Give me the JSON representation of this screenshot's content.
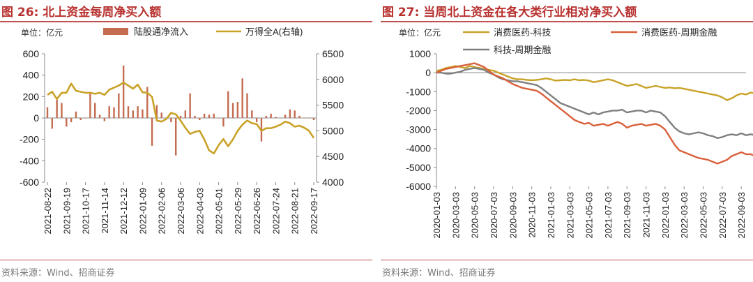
{
  "left": {
    "figure_title": "图 26:  北上资金每周净买入额",
    "source": "资料来源：Wind、招商证券",
    "unit": "单位：亿元",
    "chart_data": {
      "type": "bar+line",
      "title": "北上资金每周净买入额",
      "unit_label": "单位：亿元",
      "legend": [
        "陆股通净流入",
        "万得全A(右轴)"
      ],
      "y_left": {
        "ylim": [
          -600,
          600
        ],
        "ticks": [
          "600",
          "400",
          "200",
          "0",
          "-200",
          "-400",
          "-600"
        ],
        "tick_values": [
          600,
          400,
          200,
          0,
          -200,
          -400,
          -600
        ]
      },
      "y_right": {
        "ylim": [
          4000,
          6500
        ],
        "ticks": [
          "6500",
          "6000",
          "5500",
          "5000",
          "4500",
          "4000"
        ],
        "tick_values": [
          6500,
          6000,
          5500,
          5000,
          4500,
          4000
        ]
      },
      "x_tick_labels": [
        "2021-08-22",
        "2021-09-19",
        "2021-10-17",
        "2021-11-14",
        "2021-12-12",
        "2022-01-09",
        "2022-02-06",
        "2022-03-06",
        "2022-04-03",
        "2022-05-01",
        "2022-05-29",
        "2022-06-26",
        "2022-07-24",
        "2022-08-21",
        "2022-09-17"
      ],
      "x_tick_index": [
        0,
        4,
        8,
        12,
        16,
        20,
        24,
        28,
        32,
        36,
        40,
        44,
        48,
        52,
        56
      ],
      "bar_series": {
        "name": "陆股通净流入",
        "color": "#c46b50",
        "values": [
          100,
          -100,
          170,
          140,
          -80,
          -40,
          60,
          -20,
          0,
          230,
          140,
          30,
          -30,
          110,
          100,
          230,
          490,
          110,
          70,
          110,
          80,
          290,
          -260,
          120,
          50,
          0,
          -40,
          -350,
          20,
          70,
          230,
          20,
          -20,
          40,
          30,
          40,
          0,
          -80,
          250,
          140,
          150,
          370,
          230,
          70,
          -40,
          -220,
          20,
          40,
          10,
          0,
          30,
          80,
          70,
          20,
          0,
          0,
          -20
        ]
      },
      "line_series": {
        "name": "万得全A(右轴)",
        "color": "#c9a227",
        "values": [
          5700,
          5760,
          5620,
          5740,
          5740,
          5920,
          5780,
          5760,
          5740,
          5740,
          5720,
          5740,
          5700,
          5800,
          5840,
          5880,
          5940,
          5880,
          5820,
          5900,
          5750,
          5740,
          5660,
          5200,
          5180,
          5230,
          5350,
          5320,
          5200,
          5060,
          4940,
          4980,
          5000,
          4830,
          4620,
          4560,
          4720,
          4840,
          4700,
          4830,
          5000,
          5120,
          5200,
          5150,
          5130,
          5000,
          5050,
          5050,
          5080,
          5120,
          5180,
          5150,
          5080,
          5100,
          5060,
          5000,
          4860
        ]
      }
    }
  },
  "right": {
    "figure_title": "图 27:  当周北上资金在各大类行业相对净买入额",
    "source": "资料来源：Wind、招商证券",
    "unit": "单位：亿元",
    "chart_data": {
      "type": "line",
      "title": "当周北上资金在各大类行业相对净买入额",
      "unit_label": "单位：亿元",
      "ylim": [
        -6000,
        1000
      ],
      "y_ticks": [
        "1000",
        "0",
        "-1000",
        "-2000",
        "-3000",
        "-4000",
        "-5000",
        "-6000"
      ],
      "y_tick_values": [
        1000,
        0,
        -1000,
        -2000,
        -3000,
        -4000,
        -5000,
        -6000
      ],
      "x_tick_labels": [
        "2020-01-03",
        "2020-03-03",
        "2020-05-03",
        "2020-07-03",
        "2020-09-03",
        "2020-11-03",
        "2021-01-03",
        "2021-03-03",
        "2021-05-03",
        "2021-07-03",
        "2021-09-03",
        "2021-11-03",
        "2022-01-03",
        "2022-03-03",
        "2022-05-03",
        "2022-07-03",
        "2022-09-03"
      ],
      "x_start": "2020-01-03",
      "series": [
        {
          "name": "消费医药-科技",
          "color": "#c9a227",
          "x": [
            0,
            0.5,
            1,
            1.5,
            2,
            2.5,
            3,
            3.5,
            4,
            4.5,
            5,
            5.5,
            6,
            6.5,
            7,
            7.5,
            8,
            8.5,
            9,
            9.5,
            10,
            10.5,
            11,
            11.5,
            12,
            12.5,
            13,
            13.5,
            14,
            14.5,
            15,
            15.5,
            16,
            16.5,
            17,
            17.5,
            18,
            18.5,
            19,
            19.5,
            20,
            20.5,
            21,
            21.5,
            22,
            22.5,
            23,
            23.5,
            24,
            24.5,
            25,
            25.5,
            26,
            26.5,
            27,
            27.5,
            28,
            28.5,
            29,
            29.5,
            30,
            30.5,
            31,
            31.5,
            32,
            32.5,
            33,
            33.5
          ],
          "values": [
            100,
            150,
            250,
            300,
            350,
            300,
            250,
            350,
            300,
            250,
            200,
            150,
            100,
            0,
            -100,
            -200,
            -300,
            -350,
            -350,
            -380,
            -400,
            -380,
            -350,
            -300,
            -350,
            -420,
            -400,
            -380,
            -400,
            -350,
            -400,
            -380,
            -420,
            -500,
            -450,
            -400,
            -350,
            -400,
            -500,
            -600,
            -700,
            -650,
            -600,
            -700,
            -800,
            -750,
            -700,
            -750,
            -800,
            -780,
            -820,
            -800,
            -850,
            -900,
            -950,
            -1000,
            -1050,
            -1100,
            -1150,
            -1200,
            -1300,
            -1450,
            -1350,
            -1200,
            -1100,
            -1150,
            -1050,
            -1100
          ]
        },
        {
          "name": "消费医药-周期金融",
          "color": "#d9603b",
          "x": [
            0,
            0.5,
            1,
            1.5,
            2,
            2.5,
            3,
            3.5,
            4,
            4.5,
            5,
            5.5,
            6,
            6.5,
            7,
            7.5,
            8,
            8.5,
            9,
            9.5,
            10,
            10.5,
            11,
            11.5,
            12,
            12.5,
            13,
            13.5,
            14,
            14.5,
            15,
            15.5,
            16,
            16.5,
            17,
            17.5,
            18,
            18.5,
            19,
            19.5,
            20,
            20.5,
            21,
            21.5,
            22,
            22.5,
            23,
            23.5,
            24,
            24.5,
            25,
            25.5,
            26,
            26.5,
            27,
            27.5,
            28,
            28.5,
            29,
            29.5,
            30,
            30.5,
            31,
            31.5,
            32,
            32.5,
            33,
            33.5
          ],
          "values": [
            0,
            100,
            200,
            250,
            300,
            350,
            400,
            450,
            500,
            400,
            300,
            100,
            -100,
            -200,
            -300,
            -450,
            -600,
            -700,
            -800,
            -850,
            -900,
            -950,
            -1100,
            -1300,
            -1500,
            -1700,
            -1900,
            -2100,
            -2300,
            -2500,
            -2600,
            -2700,
            -2650,
            -2800,
            -2750,
            -2700,
            -2800,
            -2700,
            -2600,
            -2700,
            -2900,
            -2800,
            -2750,
            -2700,
            -2800,
            -2750,
            -2700,
            -2800,
            -3000,
            -3400,
            -3800,
            -4100,
            -4200,
            -4300,
            -4400,
            -4500,
            -4550,
            -4600,
            -4700,
            -4800,
            -4700,
            -4600,
            -4400,
            -4300,
            -4200,
            -4300,
            -4300,
            -4400
          ]
        },
        {
          "name": "科技-周期金融",
          "color": "#7f7f7f",
          "x": [
            0,
            0.5,
            1,
            1.5,
            2,
            2.5,
            3,
            3.5,
            4,
            4.5,
            5,
            5.5,
            6,
            6.5,
            7,
            7.5,
            8,
            8.5,
            9,
            9.5,
            10,
            10.5,
            11,
            11.5,
            12,
            12.5,
            13,
            13.5,
            14,
            14.5,
            15,
            15.5,
            16,
            16.5,
            17,
            17.5,
            18,
            18.5,
            19,
            19.5,
            20,
            20.5,
            21,
            21.5,
            22,
            22.5,
            23,
            23.5,
            24,
            24.5,
            25,
            25.5,
            26,
            26.5,
            27,
            27.5,
            28,
            28.5,
            29,
            29.5,
            30,
            30.5,
            31,
            31.5,
            32,
            32.5,
            33,
            33.5
          ],
          "values": [
            0,
            0,
            -50,
            -50,
            0,
            50,
            150,
            200,
            250,
            200,
            150,
            0,
            -100,
            -250,
            -350,
            -400,
            -450,
            -450,
            -500,
            -550,
            -600,
            -650,
            -800,
            -1000,
            -1200,
            -1400,
            -1600,
            -1700,
            -1800,
            -1900,
            -2000,
            -2100,
            -2200,
            -2100,
            -2200,
            -2100,
            -2050,
            -2000,
            -2000,
            -1950,
            -2100,
            -2050,
            -2000,
            -2000,
            -2100,
            -2000,
            -2050,
            -2100,
            -2300,
            -2600,
            -2900,
            -3100,
            -3200,
            -3250,
            -3200,
            -3150,
            -3200,
            -3300,
            -3350,
            -3450,
            -3400,
            -3300,
            -3250,
            -3300,
            -3200,
            -3300,
            -3250,
            -3300
          ]
        }
      ]
    }
  }
}
